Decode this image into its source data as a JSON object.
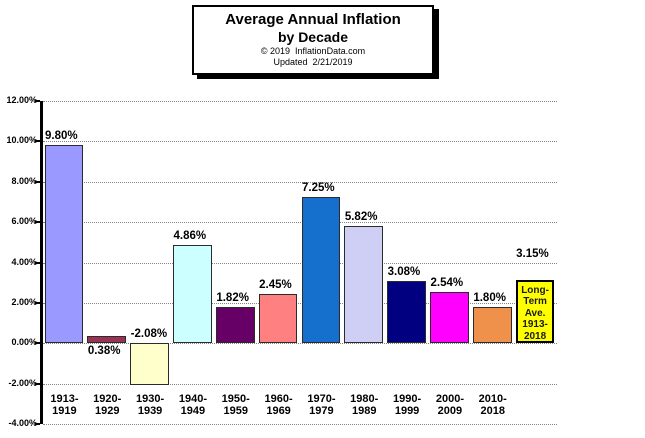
{
  "title_box": {
    "title_line1": "Average Annual Inflation",
    "title_line2": "by Decade",
    "copyright": "© 2019  InflationData.com",
    "updated": "Updated  2/21/2019"
  },
  "chart_data": {
    "type": "bar",
    "title": "Average Annual Inflation by Decade",
    "xlabel": "",
    "ylabel": "",
    "ylim": [
      -4,
      12
    ],
    "ytick_step": 2,
    "grid": {
      "horizontal": true,
      "style": "dotted",
      "color": "#848484"
    },
    "legend": "none",
    "axis_color": "#000000",
    "yticks": [
      {
        "value": 12,
        "label": "12.00%"
      },
      {
        "value": 10,
        "label": "10.00%"
      },
      {
        "value": 8,
        "label": "8.00%"
      },
      {
        "value": 6,
        "label": "6.00%"
      },
      {
        "value": 4,
        "label": "4.00%"
      },
      {
        "value": 2,
        "label": "2.00%"
      },
      {
        "value": 0,
        "label": "0.00%"
      },
      {
        "value": -2,
        "label": "-2.00%"
      },
      {
        "value": -4,
        "label": "-4.00%"
      }
    ],
    "categories": [
      "1913-1919",
      "1920-1929",
      "1930-1939",
      "1940-1949",
      "1950-1959",
      "1960-1969",
      "1970-1979",
      "1980-1989",
      "1990-1999",
      "2000-2009",
      "2010-2018",
      "Long-Term Ave. 1913-2018"
    ],
    "bars": [
      {
        "cat_line1": "1913-",
        "cat_line2": "1919",
        "value": 9.8,
        "value_label": "9.80%",
        "color": "#9999FF"
      },
      {
        "cat_line1": "1920-",
        "cat_line2": "1929",
        "value": 0.38,
        "value_label": "0.38%",
        "color": "#993355"
      },
      {
        "cat_line1": "1930-",
        "cat_line2": "1939",
        "value": -2.08,
        "value_label": "-2.08%",
        "color": "#FFFFCC"
      },
      {
        "cat_line1": "1940-",
        "cat_line2": "1949",
        "value": 4.86,
        "value_label": "4.86%",
        "color": "#CCFFFF"
      },
      {
        "cat_line1": "1950-",
        "cat_line2": "1959",
        "value": 1.82,
        "value_label": "1.82%",
        "color": "#660066"
      },
      {
        "cat_line1": "1960-",
        "cat_line2": "1969",
        "value": 2.45,
        "value_label": "2.45%",
        "color": "#FF8080"
      },
      {
        "cat_line1": "1970-",
        "cat_line2": "1979",
        "value": 7.25,
        "value_label": "7.25%",
        "color": "#1470CC"
      },
      {
        "cat_line1": "1980-",
        "cat_line2": "1989",
        "value": 5.82,
        "value_label": "5.82%",
        "color": "#CFCFF5"
      },
      {
        "cat_line1": "1990-",
        "cat_line2": "1999",
        "value": 3.08,
        "value_label": "3.08%",
        "color": "#000080"
      },
      {
        "cat_line1": "2000-",
        "cat_line2": "2009",
        "value": 2.54,
        "value_label": "2.54%",
        "color": "#FF00FF"
      },
      {
        "cat_line1": "2010-",
        "cat_line2": "2018",
        "value": 1.8,
        "value_label": "1.80%",
        "color": "#F0914B"
      },
      {
        "cat_line1": "",
        "cat_line2": "",
        "value": 3.15,
        "value_label": "3.15%",
        "color": "#FFFF00",
        "border": "2px solid #000000",
        "label_raise": 17,
        "inner_label": [
          "Long-",
          "Term",
          "Ave.",
          "1913-",
          "2018"
        ]
      }
    ]
  }
}
